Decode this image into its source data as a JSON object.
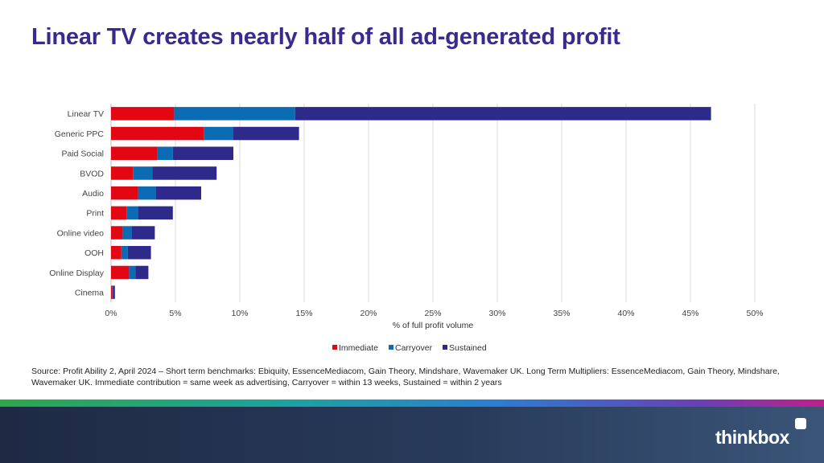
{
  "title": "Linear TV creates nearly half of all ad-generated profit",
  "chart_data": {
    "type": "bar",
    "orientation": "horizontal",
    "stacked": true,
    "categories": [
      "Linear TV",
      "Generic PPC",
      "Paid Social",
      "BVOD",
      "Audio",
      "Print",
      "Online video",
      "OOH",
      "Online Display",
      "Cinema"
    ],
    "series": [
      {
        "name": "Immediate",
        "color": "#e30613",
        "values": [
          4.9,
          7.2,
          3.6,
          1.7,
          2.1,
          1.2,
          0.9,
          0.8,
          1.4,
          0.1
        ]
      },
      {
        "name": "Carryover",
        "color": "#0b6bb3",
        "values": [
          9.4,
          2.3,
          1.2,
          1.5,
          1.4,
          0.9,
          0.7,
          0.5,
          0.5,
          0.05
        ]
      },
      {
        "name": "Sustained",
        "color": "#2e2a8c",
        "values": [
          32.3,
          5.1,
          4.7,
          5.0,
          3.5,
          2.7,
          1.8,
          1.8,
          1.0,
          0.15
        ]
      }
    ],
    "xticks": [
      "0%",
      "5%",
      "10%",
      "15%",
      "20%",
      "25%",
      "30%",
      "35%",
      "40%",
      "45%",
      "50%"
    ],
    "xlim": [
      0,
      50
    ],
    "xlabel": "% of full profit volume",
    "grid": true,
    "legend_position": "bottom"
  },
  "source": "Source: Profit Ability 2, April 2024 – Short term benchmarks: Ebiquity, EssenceMediacom, Gain Theory, Mindshare, Wavemaker UK. Long Term Multipliers: EssenceMediacom, Gain Theory, Mindshare, Wavemaker UK. Immediate contribution = same week as advertising, Carryover = within 13 weeks, Sustained = within 2 years",
  "brand": "thinkbox"
}
